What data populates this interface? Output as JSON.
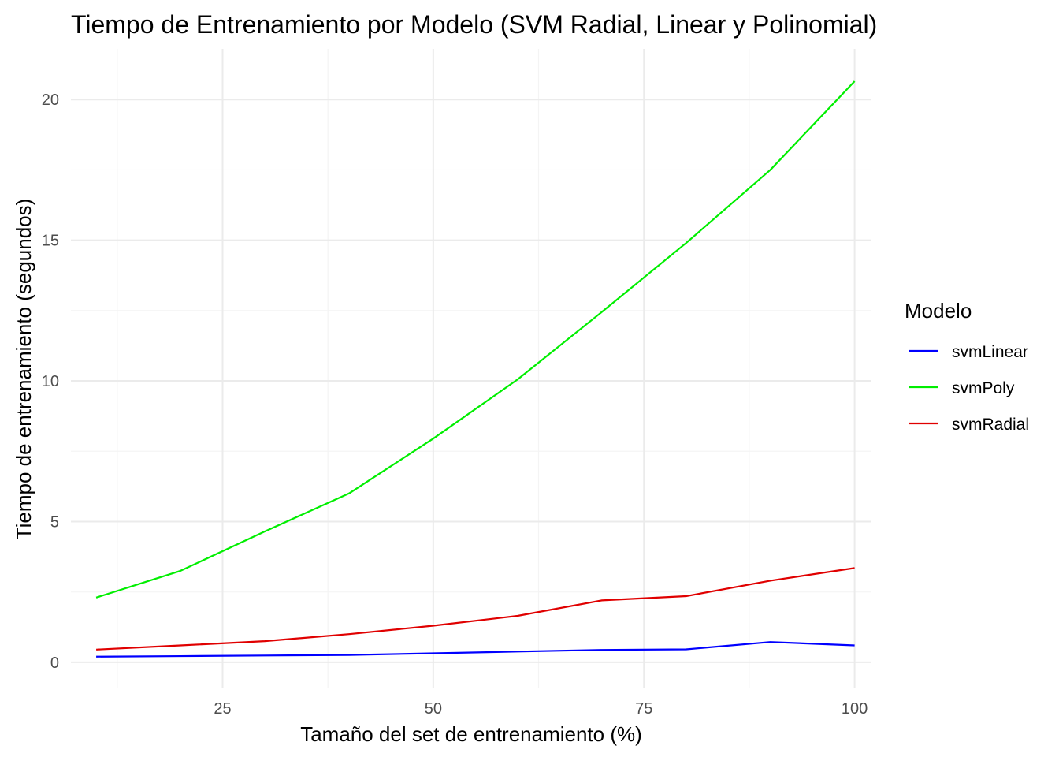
{
  "chart_data": {
    "type": "line",
    "title": "Tiempo de Entrenamiento por Modelo (SVM Radial, Linear y Polinomial)",
    "xlabel": "Tamaño del set de entrenamiento (%)",
    "ylabel": "Tiempo de entrenamiento (segundos)",
    "x": [
      10,
      20,
      30,
      40,
      50,
      60,
      70,
      80,
      90,
      100
    ],
    "xlim": [
      7,
      102
    ],
    "ylim": [
      -0.9,
      21.8
    ],
    "xticks": [
      25,
      50,
      75,
      100
    ],
    "xtick_labels": [
      "25",
      "50",
      "75",
      "100"
    ],
    "xminor": [
      12.5,
      37.5,
      62.5,
      87.5
    ],
    "yticks": [
      0,
      5,
      10,
      15,
      20
    ],
    "ytick_labels": [
      "0",
      "5",
      "10",
      "15",
      "20"
    ],
    "yminor": [
      2.5,
      7.5,
      12.5,
      17.5
    ],
    "grid": true,
    "legend": {
      "title": "Modelo",
      "placement": "right"
    },
    "series": [
      {
        "name": "svmLinear",
        "color": "#0000ff",
        "values": [
          0.2,
          0.22,
          0.24,
          0.26,
          0.32,
          0.38,
          0.44,
          0.46,
          0.72,
          0.6
        ]
      },
      {
        "name": "svmPoly",
        "color": "#00ee00",
        "values": [
          2.3,
          3.25,
          4.65,
          6.0,
          7.95,
          10.05,
          12.45,
          14.9,
          17.5,
          20.65
        ]
      },
      {
        "name": "svmRadial",
        "color": "#e00000",
        "values": [
          0.45,
          0.6,
          0.75,
          1.0,
          1.3,
          1.65,
          2.2,
          2.35,
          2.9,
          3.35
        ]
      }
    ]
  }
}
